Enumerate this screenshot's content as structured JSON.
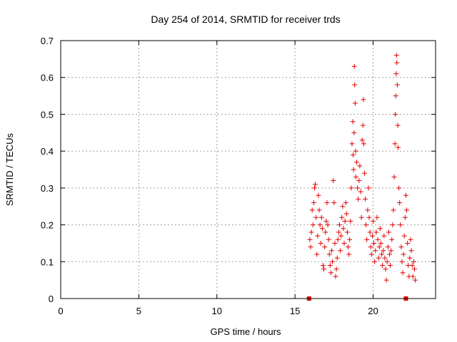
{
  "chart_data": {
    "type": "scatter",
    "title": "Day 254 of 2014, SRMTID for receiver trds",
    "xlabel": "GPS time / hours",
    "ylabel": "SRMTID / TECUs",
    "xlim": [
      0,
      24
    ],
    "ylim": [
      0,
      0.7
    ],
    "xticks": [
      0,
      5,
      10,
      15,
      20
    ],
    "yticks": [
      0,
      0.1,
      0.2,
      0.3,
      0.4,
      0.5,
      0.6,
      0.7
    ],
    "xtick_labels": [
      "0",
      "5",
      "10",
      "15",
      "20"
    ],
    "ytick_labels": [
      "0",
      "0.1",
      "0.2",
      "0.3",
      "0.4",
      "0.5",
      "0.6",
      "0.7"
    ],
    "grid": true,
    "series_color": "#e00000",
    "markers": [
      {
        "x": 15.9,
        "y": 0.0
      },
      {
        "x": 22.1,
        "y": 0.0
      }
    ],
    "points": [
      {
        "x": 15.95,
        "y": 0.16
      },
      {
        "x": 16.0,
        "y": 0.14
      },
      {
        "x": 16.05,
        "y": 0.18
      },
      {
        "x": 16.1,
        "y": 0.24
      },
      {
        "x": 16.15,
        "y": 0.2
      },
      {
        "x": 16.2,
        "y": 0.26
      },
      {
        "x": 16.25,
        "y": 0.3
      },
      {
        "x": 16.3,
        "y": 0.31
      },
      {
        "x": 16.35,
        "y": 0.22
      },
      {
        "x": 16.4,
        "y": 0.12
      },
      {
        "x": 16.45,
        "y": 0.17
      },
      {
        "x": 16.5,
        "y": 0.28
      },
      {
        "x": 16.55,
        "y": 0.24
      },
      {
        "x": 16.6,
        "y": 0.2
      },
      {
        "x": 16.65,
        "y": 0.15
      },
      {
        "x": 16.7,
        "y": 0.22
      },
      {
        "x": 16.75,
        "y": 0.19
      },
      {
        "x": 16.8,
        "y": 0.09
      },
      {
        "x": 16.85,
        "y": 0.08
      },
      {
        "x": 16.9,
        "y": 0.14
      },
      {
        "x": 16.95,
        "y": 0.18
      },
      {
        "x": 17.0,
        "y": 0.21
      },
      {
        "x": 17.05,
        "y": 0.26
      },
      {
        "x": 17.1,
        "y": 0.2
      },
      {
        "x": 17.15,
        "y": 0.16
      },
      {
        "x": 17.2,
        "y": 0.12
      },
      {
        "x": 17.25,
        "y": 0.09
      },
      {
        "x": 17.3,
        "y": 0.07
      },
      {
        "x": 17.35,
        "y": 0.13
      },
      {
        "x": 17.4,
        "y": 0.1
      },
      {
        "x": 17.45,
        "y": 0.32
      },
      {
        "x": 17.5,
        "y": 0.26
      },
      {
        "x": 17.55,
        "y": 0.15
      },
      {
        "x": 17.6,
        "y": 0.06
      },
      {
        "x": 17.65,
        "y": 0.08
      },
      {
        "x": 17.7,
        "y": 0.11
      },
      {
        "x": 17.75,
        "y": 0.16
      },
      {
        "x": 17.8,
        "y": 0.18
      },
      {
        "x": 17.85,
        "y": 0.2
      },
      {
        "x": 17.9,
        "y": 0.13
      },
      {
        "x": 17.95,
        "y": 0.17
      },
      {
        "x": 18.0,
        "y": 0.22
      },
      {
        "x": 18.05,
        "y": 0.25
      },
      {
        "x": 18.1,
        "y": 0.19
      },
      {
        "x": 18.15,
        "y": 0.15
      },
      {
        "x": 18.2,
        "y": 0.21
      },
      {
        "x": 18.25,
        "y": 0.26
      },
      {
        "x": 18.3,
        "y": 0.23
      },
      {
        "x": 18.35,
        "y": 0.18
      },
      {
        "x": 18.4,
        "y": 0.14
      },
      {
        "x": 18.45,
        "y": 0.12
      },
      {
        "x": 18.5,
        "y": 0.16
      },
      {
        "x": 18.55,
        "y": 0.21
      },
      {
        "x": 18.6,
        "y": 0.3
      },
      {
        "x": 18.65,
        "y": 0.42
      },
      {
        "x": 18.7,
        "y": 0.48
      },
      {
        "x": 18.72,
        "y": 0.39
      },
      {
        "x": 18.75,
        "y": 0.35
      },
      {
        "x": 18.78,
        "y": 0.45
      },
      {
        "x": 18.8,
        "y": 0.63
      },
      {
        "x": 18.82,
        "y": 0.58
      },
      {
        "x": 18.85,
        "y": 0.53
      },
      {
        "x": 18.88,
        "y": 0.4
      },
      {
        "x": 18.9,
        "y": 0.33
      },
      {
        "x": 18.95,
        "y": 0.37
      },
      {
        "x": 19.0,
        "y": 0.3
      },
      {
        "x": 19.05,
        "y": 0.27
      },
      {
        "x": 19.1,
        "y": 0.32
      },
      {
        "x": 19.15,
        "y": 0.36
      },
      {
        "x": 19.2,
        "y": 0.29
      },
      {
        "x": 19.25,
        "y": 0.22
      },
      {
        "x": 19.3,
        "y": 0.43
      },
      {
        "x": 19.35,
        "y": 0.47
      },
      {
        "x": 19.38,
        "y": 0.54
      },
      {
        "x": 19.4,
        "y": 0.42
      },
      {
        "x": 19.45,
        "y": 0.34
      },
      {
        "x": 19.5,
        "y": 0.27
      },
      {
        "x": 19.55,
        "y": 0.2
      },
      {
        "x": 19.6,
        "y": 0.16
      },
      {
        "x": 19.65,
        "y": 0.24
      },
      {
        "x": 19.7,
        "y": 0.3
      },
      {
        "x": 19.75,
        "y": 0.22
      },
      {
        "x": 19.8,
        "y": 0.18
      },
      {
        "x": 19.85,
        "y": 0.14
      },
      {
        "x": 19.9,
        "y": 0.12
      },
      {
        "x": 19.95,
        "y": 0.17
      },
      {
        "x": 20.0,
        "y": 0.21
      },
      {
        "x": 20.05,
        "y": 0.15
      },
      {
        "x": 20.1,
        "y": 0.1
      },
      {
        "x": 20.15,
        "y": 0.13
      },
      {
        "x": 20.2,
        "y": 0.18
      },
      {
        "x": 20.25,
        "y": 0.22
      },
      {
        "x": 20.3,
        "y": 0.16
      },
      {
        "x": 20.35,
        "y": 0.11
      },
      {
        "x": 20.4,
        "y": 0.14
      },
      {
        "x": 20.45,
        "y": 0.19
      },
      {
        "x": 20.5,
        "y": 0.15
      },
      {
        "x": 20.55,
        "y": 0.12
      },
      {
        "x": 20.6,
        "y": 0.09
      },
      {
        "x": 20.65,
        "y": 0.13
      },
      {
        "x": 20.7,
        "y": 0.17
      },
      {
        "x": 20.75,
        "y": 0.11
      },
      {
        "x": 20.8,
        "y": 0.08
      },
      {
        "x": 20.85,
        "y": 0.05
      },
      {
        "x": 20.9,
        "y": 0.1
      },
      {
        "x": 20.95,
        "y": 0.14
      },
      {
        "x": 21.0,
        "y": 0.18
      },
      {
        "x": 21.05,
        "y": 0.12
      },
      {
        "x": 21.1,
        "y": 0.09
      },
      {
        "x": 21.15,
        "y": 0.13
      },
      {
        "x": 21.2,
        "y": 0.16
      },
      {
        "x": 21.25,
        "y": 0.2
      },
      {
        "x": 21.3,
        "y": 0.24
      },
      {
        "x": 21.35,
        "y": 0.33
      },
      {
        "x": 21.4,
        "y": 0.42
      },
      {
        "x": 21.42,
        "y": 0.5
      },
      {
        "x": 21.45,
        "y": 0.55
      },
      {
        "x": 21.48,
        "y": 0.61
      },
      {
        "x": 21.5,
        "y": 0.66
      },
      {
        "x": 21.52,
        "y": 0.64
      },
      {
        "x": 21.55,
        "y": 0.58
      },
      {
        "x": 21.58,
        "y": 0.47
      },
      {
        "x": 21.6,
        "y": 0.41
      },
      {
        "x": 21.65,
        "y": 0.3
      },
      {
        "x": 21.7,
        "y": 0.26
      },
      {
        "x": 21.75,
        "y": 0.2
      },
      {
        "x": 21.8,
        "y": 0.14
      },
      {
        "x": 21.85,
        "y": 0.1
      },
      {
        "x": 21.9,
        "y": 0.07
      },
      {
        "x": 21.95,
        "y": 0.12
      },
      {
        "x": 22.0,
        "y": 0.17
      },
      {
        "x": 22.05,
        "y": 0.22
      },
      {
        "x": 22.1,
        "y": 0.28
      },
      {
        "x": 22.15,
        "y": 0.24
      },
      {
        "x": 22.2,
        "y": 0.15
      },
      {
        "x": 22.25,
        "y": 0.09
      },
      {
        "x": 22.3,
        "y": 0.06
      },
      {
        "x": 22.35,
        "y": 0.11
      },
      {
        "x": 22.4,
        "y": 0.16
      },
      {
        "x": 22.45,
        "y": 0.13
      },
      {
        "x": 22.5,
        "y": 0.09
      },
      {
        "x": 22.55,
        "y": 0.06
      },
      {
        "x": 22.6,
        "y": 0.1
      },
      {
        "x": 22.65,
        "y": 0.08
      },
      {
        "x": 22.7,
        "y": 0.05
      }
    ]
  }
}
